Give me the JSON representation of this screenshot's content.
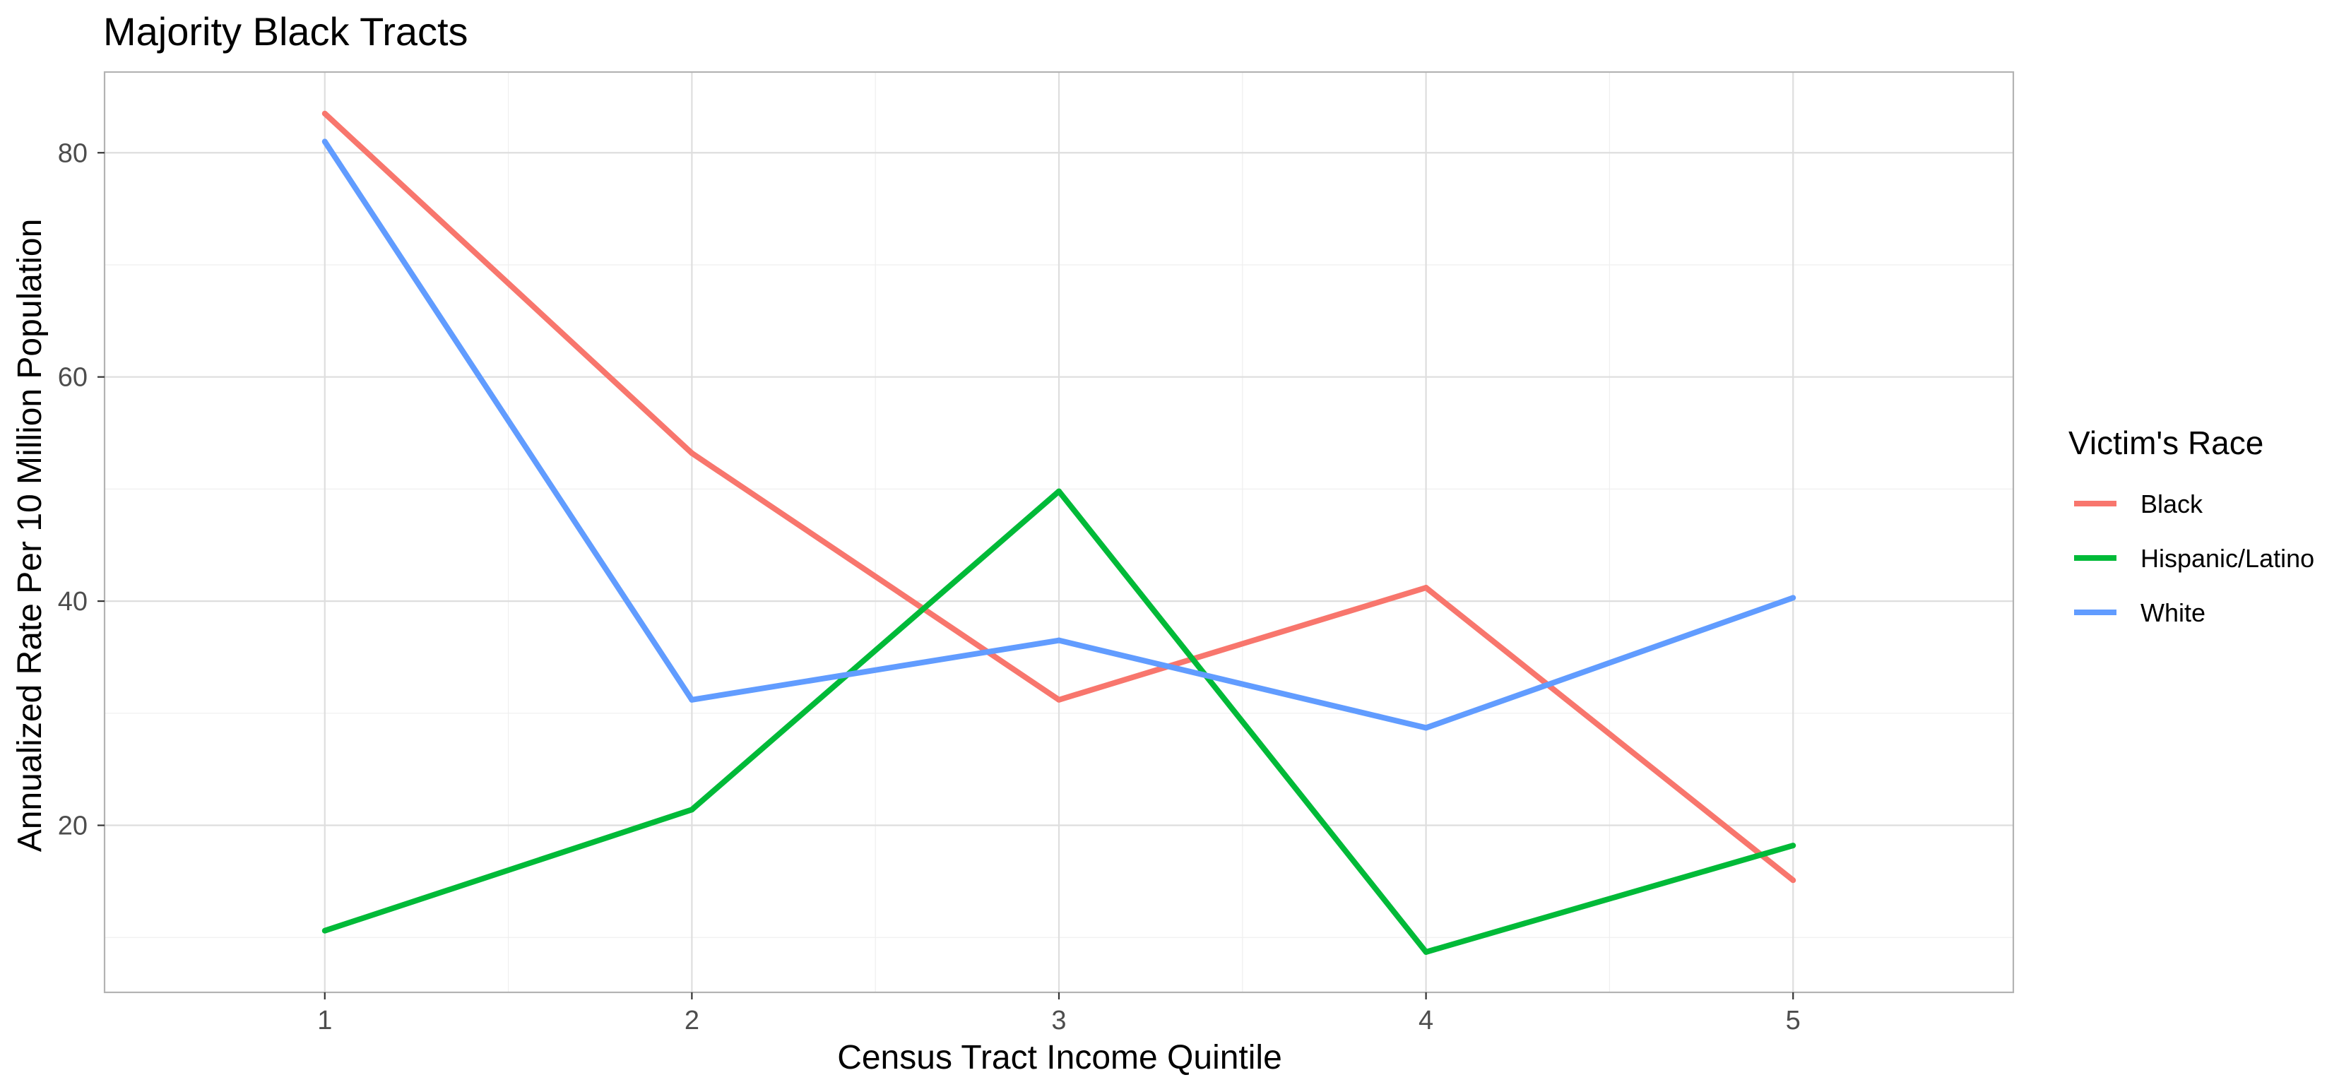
{
  "chart_data": {
    "type": "line",
    "title": "Majority Black Tracts",
    "xlabel": "Census Tract Income Quintile",
    "ylabel": "Annualized Rate Per 10 Million Population",
    "x": [
      1,
      2,
      3,
      4,
      5
    ],
    "xlim": [
      0.4,
      5.6
    ],
    "ylim": [
      5.1,
      87.2
    ],
    "y_ticks": [
      20,
      40,
      60,
      80
    ],
    "x_ticks": [
      1,
      2,
      3,
      4,
      5
    ],
    "grid": true,
    "legend_title": "Victim's Race",
    "legend_position": "right",
    "series": [
      {
        "name": "Black",
        "color": "#F8766D",
        "values": [
          83.5,
          53.2,
          31.2,
          41.2,
          15.1
        ]
      },
      {
        "name": "Hispanic/Latino",
        "color": "#00BA38",
        "values": [
          10.6,
          21.4,
          49.8,
          8.7,
          18.2
        ]
      },
      {
        "name": "White",
        "color": "#619CFF",
        "values": [
          81.0,
          31.2,
          36.5,
          28.7,
          40.3
        ]
      }
    ]
  }
}
